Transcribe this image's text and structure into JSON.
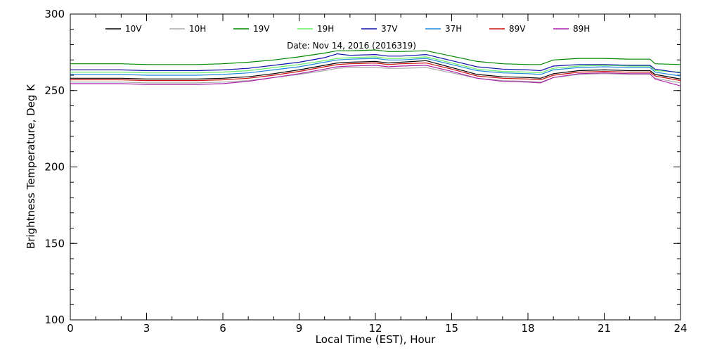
{
  "chart_data": {
    "type": "line",
    "title": "Date: Nov 14, 2016 (2016319)",
    "xlabel": "Local Time (EST), Hour",
    "ylabel": "Brightness Temperature, Deg K",
    "xlim": [
      0,
      24
    ],
    "ylim": [
      100,
      300
    ],
    "x_ticks": [
      0,
      3,
      6,
      9,
      12,
      15,
      18,
      21,
      24
    ],
    "y_ticks": [
      100,
      150,
      200,
      250,
      300
    ],
    "grid": false,
    "legend_position": "top",
    "x": [
      0,
      1,
      2,
      3,
      4,
      5,
      6,
      7,
      8,
      9,
      10,
      10.5,
      11,
      12,
      12.5,
      13,
      14,
      15,
      16,
      17,
      18,
      18.5,
      19,
      20,
      21,
      22,
      22.8,
      23,
      24
    ],
    "series": [
      {
        "name": "10V",
        "color": "#000000",
        "values": [
          258.0,
          258.0,
          258.0,
          257.5,
          257.5,
          257.5,
          258.0,
          259.0,
          261.0,
          263.5,
          266.5,
          268.0,
          268.5,
          269.0,
          268.0,
          268.5,
          269.5,
          265.0,
          260.5,
          259.0,
          258.5,
          258.0,
          261.0,
          263.0,
          263.5,
          263.0,
          263.0,
          260.5,
          257.5
        ]
      },
      {
        "name": "10H",
        "color": "#aaaaaa",
        "values": [
          255.5,
          255.5,
          255.5,
          255.0,
          255.0,
          255.0,
          255.5,
          256.5,
          258.5,
          260.5,
          263.0,
          264.5,
          265.0,
          265.0,
          264.5,
          264.5,
          265.0,
          261.5,
          258.0,
          256.5,
          256.0,
          255.5,
          258.5,
          260.5,
          261.0,
          260.5,
          260.5,
          258.0,
          255.0
        ]
      },
      {
        "name": "19V",
        "color": "#008800",
        "values": [
          267.5,
          267.5,
          267.5,
          267.0,
          267.0,
          267.0,
          267.5,
          268.5,
          270.0,
          272.0,
          274.5,
          276.0,
          276.0,
          276.5,
          275.5,
          275.5,
          276.0,
          272.5,
          269.0,
          267.5,
          267.0,
          267.0,
          270.0,
          271.0,
          271.0,
          270.5,
          270.5,
          267.5,
          267.0
        ]
      },
      {
        "name": "19H",
        "color": "#66ee66",
        "values": [
          262.0,
          262.0,
          262.0,
          261.5,
          261.5,
          261.5,
          262.0,
          263.0,
          265.0,
          267.0,
          269.5,
          271.0,
          271.5,
          272.0,
          271.0,
          271.0,
          272.0,
          268.0,
          264.0,
          262.5,
          262.0,
          261.5,
          264.5,
          266.0,
          266.5,
          266.0,
          266.0,
          263.0,
          262.0
        ]
      },
      {
        "name": "37V",
        "color": "#1111aa",
        "values": [
          263.5,
          263.5,
          263.5,
          263.0,
          263.0,
          263.0,
          263.5,
          264.5,
          266.5,
          268.5,
          271.5,
          274.0,
          273.0,
          273.5,
          272.5,
          272.5,
          273.5,
          269.5,
          265.5,
          264.0,
          263.5,
          263.0,
          266.0,
          267.0,
          267.0,
          266.5,
          266.5,
          264.0,
          261.5
        ]
      },
      {
        "name": "37H",
        "color": "#2288dd",
        "values": [
          260.5,
          260.5,
          260.5,
          260.0,
          260.0,
          260.0,
          260.5,
          261.5,
          263.5,
          265.5,
          268.5,
          270.0,
          270.5,
          271.0,
          270.0,
          270.0,
          271.0,
          267.0,
          263.0,
          261.5,
          261.0,
          260.5,
          263.5,
          265.0,
          265.5,
          265.0,
          265.0,
          262.0,
          259.5
        ]
      },
      {
        "name": "89V",
        "color": "#cc1111",
        "values": [
          257.0,
          257.0,
          257.0,
          256.5,
          256.5,
          256.5,
          257.0,
          258.0,
          260.0,
          262.5,
          265.5,
          267.0,
          267.5,
          268.0,
          267.0,
          267.5,
          268.0,
          264.0,
          259.5,
          258.0,
          257.5,
          257.0,
          260.0,
          262.0,
          262.5,
          262.0,
          262.0,
          259.5,
          256.5
        ]
      },
      {
        "name": "89H",
        "color": "#aa22aa",
        "values": [
          254.5,
          254.5,
          254.5,
          254.0,
          254.0,
          254.0,
          254.5,
          256.0,
          258.5,
          261.0,
          264.0,
          265.5,
          266.0,
          266.5,
          265.5,
          266.0,
          266.5,
          262.5,
          258.0,
          256.0,
          255.5,
          255.0,
          258.5,
          261.0,
          261.5,
          261.0,
          261.0,
          257.5,
          253.0
        ]
      }
    ]
  }
}
